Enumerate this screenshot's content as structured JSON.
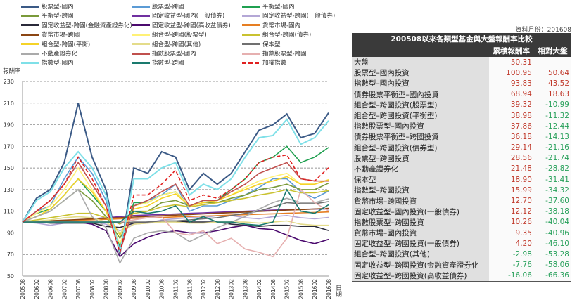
{
  "chart_data": {
    "type": "line",
    "ylabel": "報酬率",
    "xlabel": "日期",
    "ylim": [
      50,
      230
    ],
    "yticks": [
      50,
      70,
      90,
      110,
      130,
      150,
      170,
      190,
      210,
      230
    ],
    "grid": "horizontal dashed",
    "legend_position": "top",
    "x": [
      "200508",
      "200602",
      "200608",
      "200702",
      "200708",
      "200802",
      "200808",
      "200902",
      "200908",
      "201002",
      "201008",
      "201102",
      "201108",
      "201202",
      "201208",
      "201302",
      "201308",
      "201402",
      "201408",
      "201502",
      "201508",
      "201602",
      "201608"
    ],
    "series": [
      {
        "name": "股票型-國內",
        "color": "#3b5a86",
        "values": [
          100,
          122,
          130,
          155,
          210,
          160,
          130,
          70,
          150,
          145,
          165,
          160,
          130,
          145,
          135,
          145,
          165,
          185,
          190,
          200,
          178,
          182,
          201
        ]
      },
      {
        "name": "股票型-跨國",
        "color": "#5b9bd5",
        "values": [
          100,
          110,
          115,
          140,
          160,
          145,
          120,
          75,
          115,
          120,
          125,
          135,
          110,
          115,
          115,
          120,
          125,
          132,
          140,
          140,
          128,
          122,
          128.6
        ]
      },
      {
        "name": "平衡型-國內",
        "color": "#1fa050",
        "values": [
          100,
          108,
          112,
          125,
          140,
          125,
          110,
          78,
          118,
          118,
          125,
          128,
          115,
          120,
          120,
          130,
          140,
          155,
          160,
          170,
          155,
          160,
          169
        ]
      },
      {
        "name": "平衡型-跨國",
        "color": "#7a9a3a",
        "values": [
          100,
          105,
          110,
          120,
          130,
          120,
          105,
          85,
          110,
          110,
          118,
          120,
          115,
          118,
          118,
          122,
          125,
          130,
          132,
          135,
          130,
          130,
          136
        ]
      },
      {
        "name": "固定收益型-國內(一般債券)",
        "color": "#7030a0",
        "values": [
          100,
          100.5,
          101,
          101.5,
          102,
          103,
          104,
          105,
          106,
          106.5,
          107,
          107.5,
          108,
          108.5,
          109,
          109.5,
          110,
          110.5,
          111,
          111.5,
          111.8,
          112,
          112.1
        ]
      },
      {
        "name": "固定收益型-跨國(一般債券)",
        "color": "#b4a7d6",
        "values": [
          100,
          99,
          97,
          99,
          100,
          100,
          98,
          92,
          98,
          99,
          102,
          103,
          104,
          104,
          106,
          106,
          104,
          103,
          105,
          106,
          104,
          103,
          104.2
        ]
      },
      {
        "name": "固定收益型-跨國(金融資產證券化)",
        "color": "#2a2a3a",
        "values": [
          100,
          100,
          99,
          99,
          99,
          99,
          96,
          95,
          99,
          100,
          101,
          101,
          100,
          100,
          100,
          98,
          97,
          96,
          97,
          97,
          96,
          96,
          92.2
        ]
      },
      {
        "name": "固定收益型-跨國(高收益債券)",
        "color": "#4b0a6e",
        "values": [
          100,
          100,
          100,
          100,
          100,
          98,
          92,
          68,
          80,
          86,
          90,
          92,
          90,
          90,
          92,
          95,
          97,
          94,
          93,
          88,
          83,
          80,
          84
        ]
      },
      {
        "name": "貨幣市場-國內",
        "color": "#e67e22",
        "values": [
          100,
          100.4,
          100.8,
          101.3,
          101.7,
          102.1,
          102.5,
          103,
          103.4,
          103.8,
          104.2,
          104.7,
          105.1,
          105.5,
          105.9,
          106.4,
          106.8,
          107.2,
          107.6,
          108.1,
          108.5,
          108.9,
          109.35
        ]
      },
      {
        "name": "貨幣市場-跨國",
        "color": "#8b4513",
        "values": [
          100,
          100.6,
          101.2,
          101.7,
          102.3,
          102.9,
          103.5,
          104,
          104.6,
          105.2,
          105.8,
          106.4,
          106.9,
          107.5,
          108.1,
          108.7,
          109.2,
          109.8,
          110.4,
          111,
          111.5,
          112.1,
          112.7
        ]
      },
      {
        "name": "組合型-跨國(股票型)",
        "color": "#fff176",
        "values": [
          100,
          108,
          115,
          130,
          150,
          130,
          110,
          80,
          115,
          118,
          125,
          128,
          115,
          118,
          120,
          125,
          132,
          138,
          142,
          145,
          135,
          135,
          139.3
        ]
      },
      {
        "name": "組合型-跨國(債券)",
        "color": "#c9c230",
        "values": [
          100,
          102,
          104,
          106,
          108,
          108,
          104,
          98,
          108,
          110,
          114,
          116,
          114,
          116,
          118,
          120,
          122,
          125,
          127,
          130,
          127,
          127,
          129.1
        ]
      },
      {
        "name": "組合型-跨國(平衡)",
        "color": "#f5d327",
        "values": [
          100,
          105,
          112,
          125,
          140,
          128,
          110,
          88,
          112,
          115,
          122,
          126,
          115,
          118,
          120,
          125,
          130,
          135,
          138,
          142,
          135,
          135,
          139
        ]
      },
      {
        "name": "組合型-跨國(其他)",
        "color": "#e4dc8a",
        "values": [
          100,
          101,
          102,
          104,
          105,
          104,
          100,
          90,
          98,
          99,
          100,
          100,
          99,
          99,
          100,
          100,
          100,
          99,
          100,
          101,
          98,
          97,
          97
        ]
      },
      {
        "name": "保本型",
        "color": "#707070",
        "values": [
          100,
          100,
          100,
          100,
          100,
          100,
          100,
          99,
          100,
          100,
          101,
          101,
          102,
          103,
          104,
          106,
          108,
          110,
          114,
          118,
          117,
          117,
          118.9
        ]
      },
      {
        "name": "不動產證券化",
        "color": "#aaaaaa",
        "values": [
          100,
          105,
          110,
          120,
          130,
          105,
          95,
          62,
          85,
          90,
          92,
          90,
          82,
          88,
          95,
          100,
          105,
          112,
          118,
          122,
          118,
          118,
          121.5
        ]
      },
      {
        "name": "指數股票型-國內",
        "color": "#c0504d",
        "values": [
          100,
          110,
          120,
          135,
          155,
          135,
          115,
          72,
          115,
          120,
          128,
          135,
          115,
          120,
          120,
          128,
          135,
          145,
          150,
          155,
          140,
          138,
          137.9
        ]
      },
      {
        "name": "指數股票型-跨國",
        "color": "#e6b0b0",
        "values": [
          100,
          100,
          100,
          100,
          100,
          100,
          100,
          100,
          102,
          104,
          105,
          90,
          88,
          92,
          80,
          85,
          75,
          72,
          68,
          85,
          130,
          118,
          110.3
        ]
      },
      {
        "name": "指數型-國內",
        "color": "#7fe0e8",
        "values": [
          100,
          120,
          128,
          150,
          165,
          150,
          125,
          72,
          140,
          140,
          150,
          155,
          125,
          135,
          130,
          140,
          160,
          178,
          180,
          195,
          172,
          178,
          193.8
        ]
      },
      {
        "name": "指數型-跨國",
        "color": "#1a7a6e",
        "values": [
          100,
          100,
          100,
          100,
          100,
          100,
          100,
          100,
          110,
          108,
          110,
          115,
          100,
          105,
          100,
          100,
          98,
          97,
          100,
          130,
          110,
          108,
          116
        ]
      },
      {
        "name": "加權指數",
        "color": "#e02020",
        "dashed": true,
        "values": [
          100,
          110,
          120,
          135,
          160,
          140,
          115,
          72,
          125,
          125,
          135,
          148,
          120,
          125,
          122,
          130,
          140,
          155,
          160,
          162,
          140,
          138,
          150.3
        ]
      }
    ]
  },
  "table": {
    "data_month": "資料月份：201608",
    "title": "200508以來各類型基金與大盤報酬率比較",
    "col1": "累積報酬率",
    "col2": "相對大盤",
    "rows": [
      {
        "name": "大盤",
        "ret": "50.31",
        "rel": ""
      },
      {
        "name": "股票型–國內投資",
        "ret": "100.95",
        "rel": "50.64"
      },
      {
        "name": "指數型–國內投資",
        "ret": "93.83",
        "rel": "43.52"
      },
      {
        "name": "債券股票平衡型–國內投資",
        "ret": "68.94",
        "rel": "18.63"
      },
      {
        "name": "組合型–跨國投資(股票型)",
        "ret": "39.32",
        "rel": "-10.99"
      },
      {
        "name": "組合型–跨國投資(平衡型)",
        "ret": "38.98",
        "rel": "-11.32"
      },
      {
        "name": "指數股票型–國內投資",
        "ret": "37.86",
        "rel": "-12.44"
      },
      {
        "name": "債券股票平衡型–跨國投資",
        "ret": "36.18",
        "rel": "-14.13"
      },
      {
        "name": "組合型–跨國投資(債券型)",
        "ret": "29.14",
        "rel": "-21.16"
      },
      {
        "name": "股票型–跨國投資",
        "ret": "28.56",
        "rel": "-21.74"
      },
      {
        "name": "不動產證券化",
        "ret": "21.48",
        "rel": "-28.82"
      },
      {
        "name": "保本型",
        "ret": "18.90",
        "rel": "-31.41"
      },
      {
        "name": "指數型–跨國投資",
        "ret": "15.99",
        "rel": "-34.32"
      },
      {
        "name": "貨幣市場–跨國投資",
        "ret": "12.70",
        "rel": "-37.60"
      },
      {
        "name": "固定收益型–國內投資(一般債券)",
        "ret": "12.12",
        "rel": "-38.18"
      },
      {
        "name": "指數股票型–跨國投資",
        "ret": "10.26",
        "rel": "-40.04"
      },
      {
        "name": "貨幣市場–國內投資",
        "ret": "9.35",
        "rel": "-40.96"
      },
      {
        "name": "固定收益型–跨國投資(一般債券)",
        "ret": "4.20",
        "rel": "-46.10"
      },
      {
        "name": "組合型–跨國投資(其他)",
        "ret": "-2.98",
        "rel": "-53.28"
      },
      {
        "name": "固定收益型–跨國投資(金融資產證券化",
        "ret": "-7.76",
        "rel": "-58.06"
      },
      {
        "name": "固定收益型–跨國投資(高收益債券)",
        "ret": "-16.06",
        "rel": "-66.36"
      }
    ]
  }
}
